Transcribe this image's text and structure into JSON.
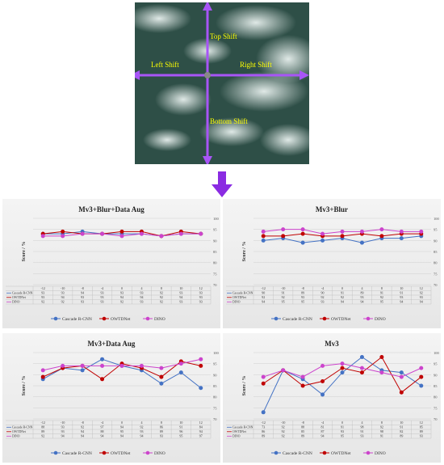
{
  "figure": {
    "shift_labels": {
      "top": "Top Shift",
      "left": "Left Shift",
      "right": "Right Shift",
      "bottom": "Bottom Shift"
    },
    "colors": {
      "arrow": "#8a2be2",
      "crosshair": "#a855f7",
      "shift_text": "#ffff00"
    }
  },
  "chart_data": [
    {
      "type": "line",
      "title": "Mv3+Blur+Data Aug",
      "ylabel": "Score / %",
      "ylim": [
        70,
        100
      ],
      "yticks": [
        70,
        75,
        80,
        85,
        90,
        95,
        100
      ],
      "categories": [
        "-12",
        "-10",
        "-8",
        "-4",
        "0",
        "4",
        "8",
        "10",
        "12"
      ],
      "series": [
        {
          "name": "Cascade R-CNN",
          "color": "#4472c4",
          "values": [
            93,
            93,
            94,
            93,
            93,
            93,
            92,
            93,
            93
          ]
        },
        {
          "name": "OWTDNet",
          "color": "#c00000",
          "values": [
            93,
            94,
            93,
            93,
            94,
            94,
            92,
            94,
            93
          ]
        },
        {
          "name": "DINO",
          "color": "#cc44cc",
          "values": [
            92,
            92,
            93,
            93,
            92,
            93,
            92,
            93,
            93
          ]
        }
      ]
    },
    {
      "type": "line",
      "title": "Mv3+Blur",
      "ylabel": "Score / %",
      "ylim": [
        70,
        100
      ],
      "yticks": [
        70,
        75,
        80,
        85,
        90,
        95,
        100
      ],
      "categories": [
        "-12",
        "-10",
        "-8",
        "-4",
        "0",
        "4",
        "8",
        "10",
        "12"
      ],
      "series": [
        {
          "name": "Cascade R-CNN",
          "color": "#4472c4",
          "values": [
            90,
            91,
            89,
            90,
            91,
            89,
            91,
            91,
            92
          ]
        },
        {
          "name": "OWTDNet",
          "color": "#c00000",
          "values": [
            92,
            92,
            93,
            92,
            92,
            93,
            92,
            93,
            93
          ]
        },
        {
          "name": "DINO",
          "color": "#cc44cc",
          "values": [
            94,
            95,
            95,
            93,
            94,
            94,
            95,
            94,
            94
          ]
        }
      ]
    },
    {
      "type": "line",
      "title": "Mv3+Data Aug",
      "ylabel": "Score / %",
      "ylim": [
        70,
        100
      ],
      "yticks": [
        70,
        75,
        80,
        85,
        90,
        95,
        100
      ],
      "categories": [
        "-12",
        "-10",
        "-8",
        "-4",
        "0",
        "4",
        "8",
        "10",
        "12"
      ],
      "series": [
        {
          "name": "Cascade R-CNN",
          "color": "#4472c4",
          "values": [
            88,
            93,
            92,
            97,
            94,
            92,
            86,
            91,
            84
          ]
        },
        {
          "name": "OWTDNet",
          "color": "#c00000",
          "values": [
            89,
            93,
            94,
            88,
            95,
            93,
            89,
            96,
            94
          ]
        },
        {
          "name": "DINO",
          "color": "#cc44cc",
          "values": [
            92,
            94,
            94,
            94,
            94,
            94,
            93,
            95,
            97
          ]
        }
      ]
    },
    {
      "type": "line",
      "title": "Mv3",
      "ylabel": "Score / %",
      "ylim": [
        70,
        100
      ],
      "yticks": [
        70,
        75,
        80,
        85,
        90,
        95,
        100
      ],
      "categories": [
        "-12",
        "-10",
        "-8",
        "-4",
        "0",
        "4",
        "8",
        "10",
        "12"
      ],
      "series": [
        {
          "name": "Cascade R-CNN",
          "color": "#4472c4",
          "values": [
            73,
            92,
            88,
            81,
            91,
            98,
            92,
            91,
            85
          ]
        },
        {
          "name": "OWTDNet",
          "color": "#c00000",
          "values": [
            86,
            92,
            85,
            87,
            93,
            91,
            98,
            82,
            89
          ]
        },
        {
          "name": "DINO",
          "color": "#cc44cc",
          "values": [
            89,
            92,
            89,
            94,
            95,
            93,
            91,
            89,
            93
          ]
        }
      ]
    }
  ]
}
